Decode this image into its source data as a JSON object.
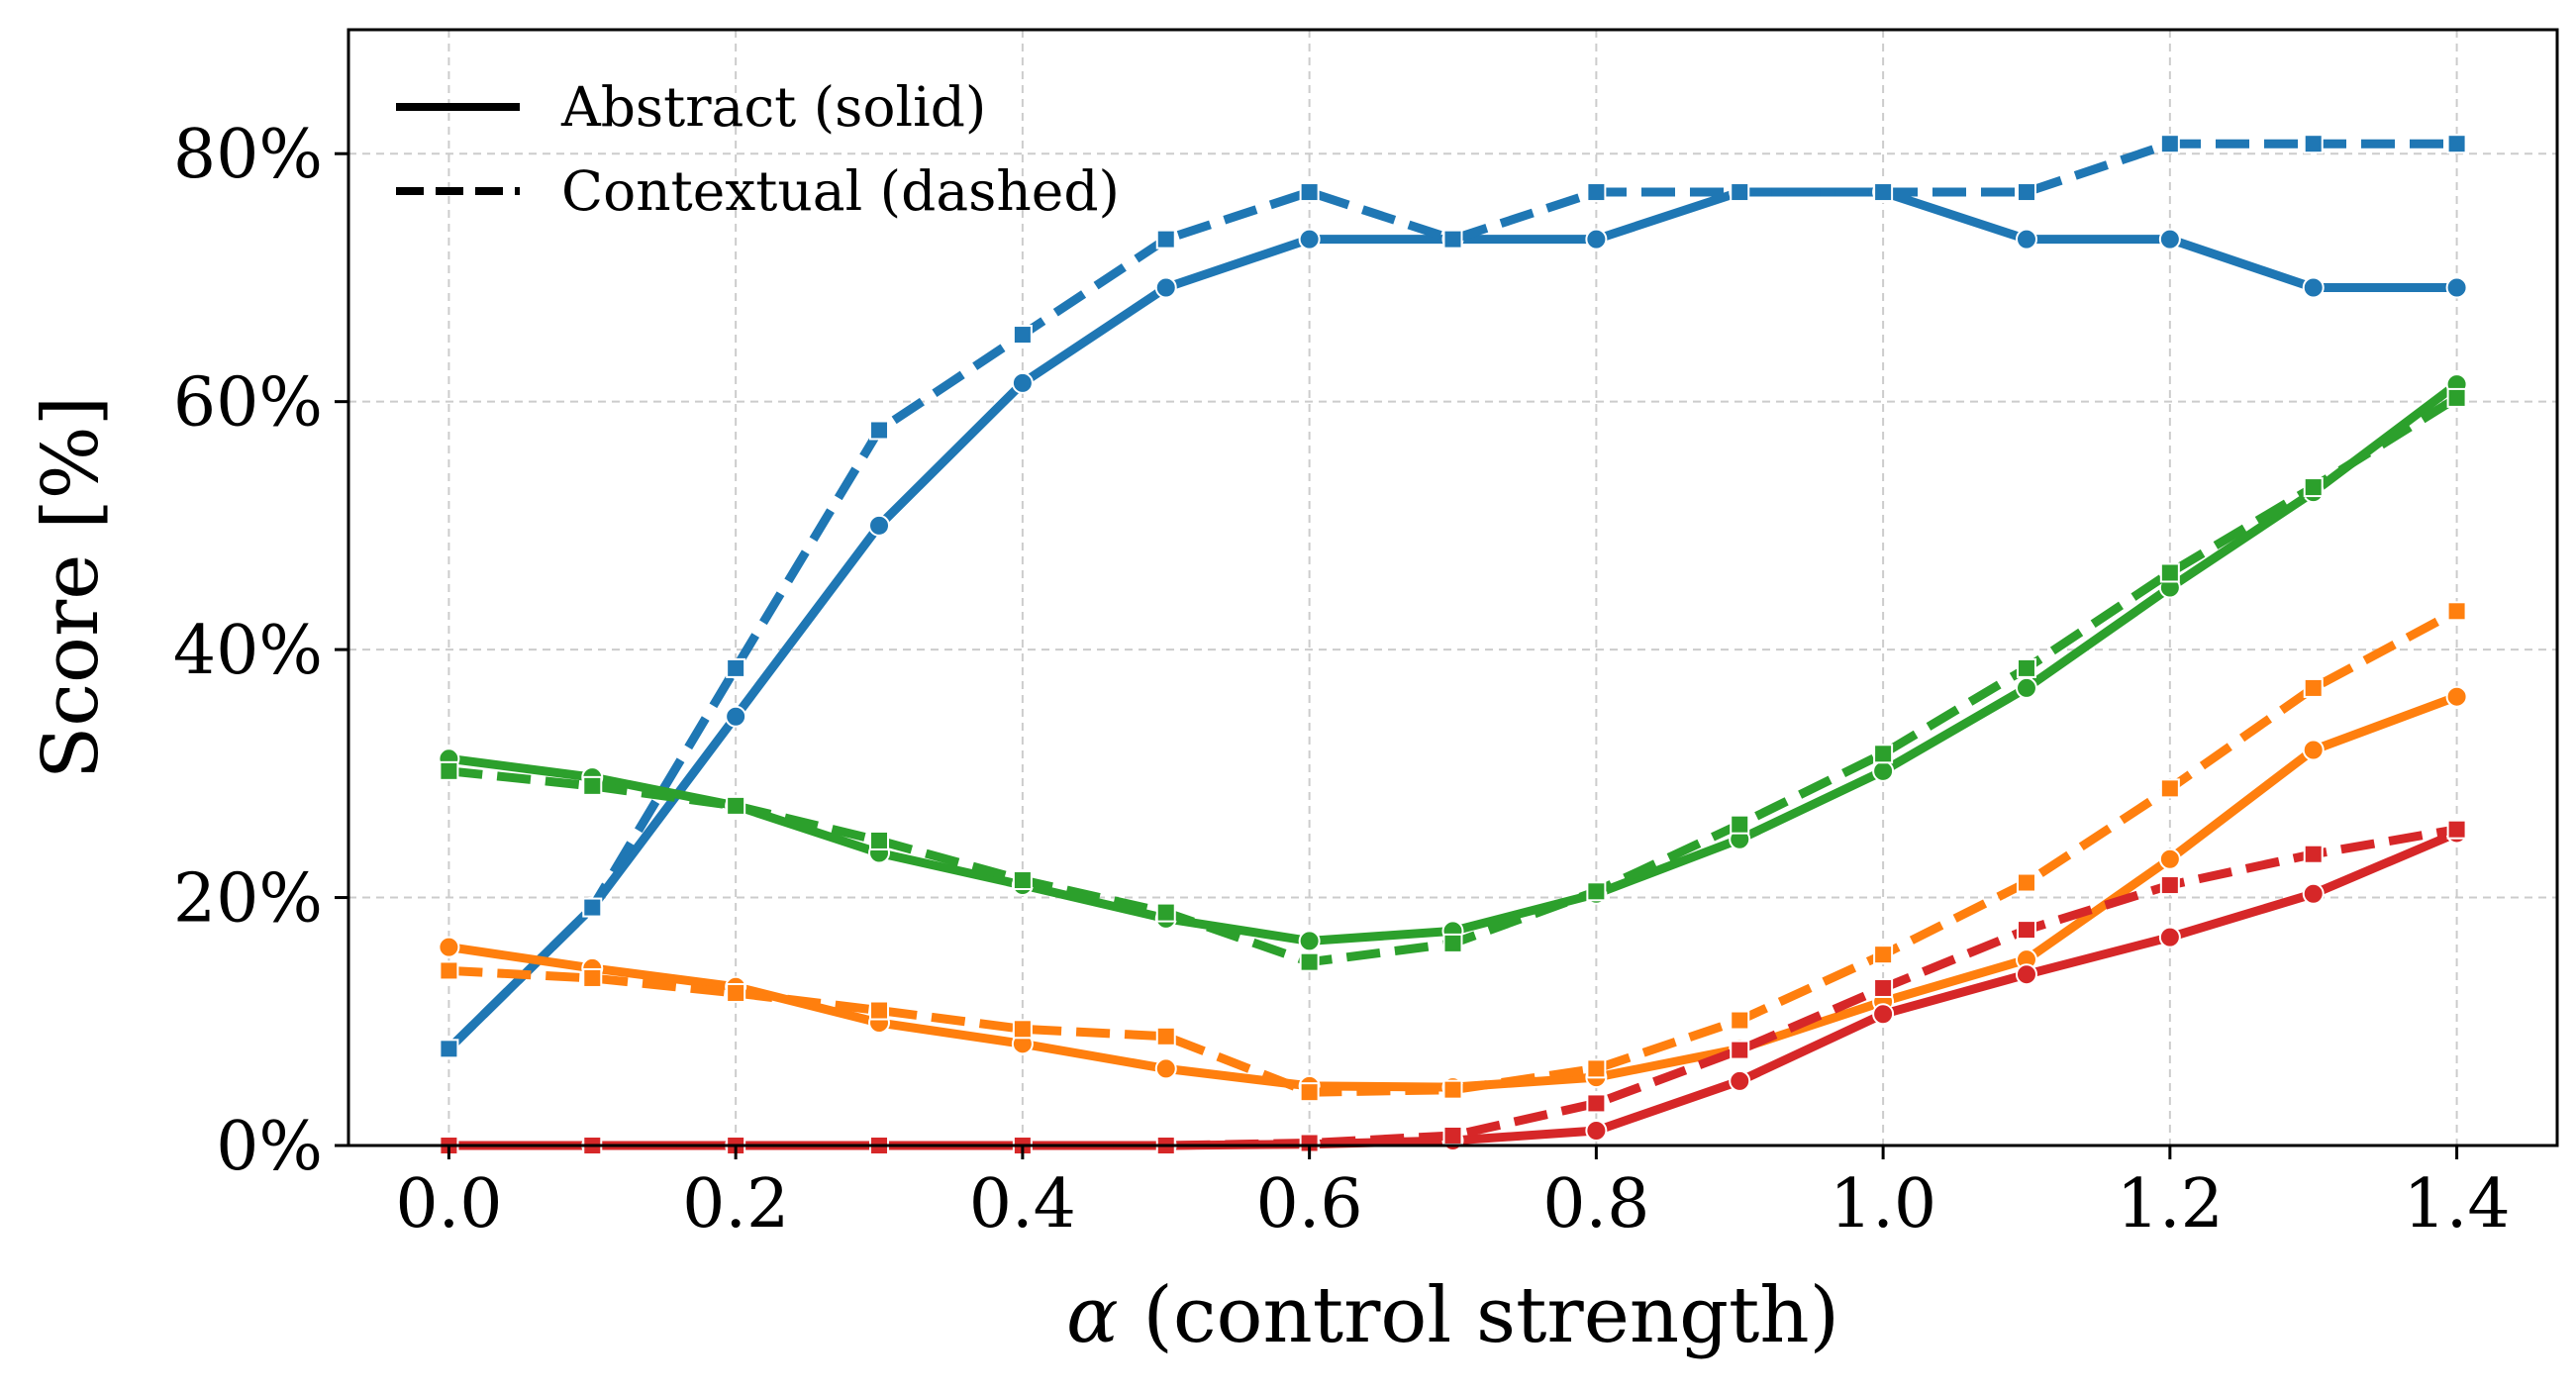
{
  "chart_data": {
    "type": "line",
    "xlabel_symbol": "α",
    "xlabel_rest": " (control strength)",
    "ylabel": "Score [%]",
    "x": [
      0.0,
      0.1,
      0.2,
      0.3,
      0.4,
      0.5,
      0.6,
      0.7,
      0.8,
      0.9,
      1.0,
      1.1,
      1.2,
      1.3,
      1.4
    ],
    "xlim": [
      -0.07,
      1.47
    ],
    "ylim": [
      0,
      90
    ],
    "xticks": [
      0.0,
      0.2,
      0.4,
      0.6,
      0.8,
      1.0,
      1.2,
      1.4
    ],
    "xtick_labels": [
      "0.0",
      "0.2",
      "0.4",
      "0.6",
      "0.8",
      "1.0",
      "1.2",
      "1.4"
    ],
    "yticks": [
      0,
      20,
      40,
      60,
      80
    ],
    "ytick_labels": [
      "0%",
      "20%",
      "40%",
      "60%",
      "80%"
    ],
    "grid": true,
    "legend": {
      "position": "top-left",
      "entries": [
        {
          "label": "Abstract (solid)",
          "style": "solid"
        },
        {
          "label": "Contextual (dashed)",
          "style": "dashed"
        }
      ]
    },
    "series": [
      {
        "name": "blue-abstract",
        "color": "#1f77b4",
        "style": "solid",
        "marker": "circle",
        "values": [
          7.8,
          19.2,
          34.6,
          50.0,
          61.5,
          69.2,
          73.1,
          73.1,
          73.1,
          76.9,
          76.9,
          73.1,
          73.1,
          69.2,
          69.2
        ]
      },
      {
        "name": "blue-contextual",
        "color": "#1f77b4",
        "style": "dashed",
        "marker": "square",
        "values": [
          7.8,
          19.2,
          38.5,
          57.7,
          65.4,
          73.1,
          76.9,
          73.1,
          76.9,
          76.9,
          76.9,
          76.9,
          80.8,
          80.8,
          80.8
        ]
      },
      {
        "name": "green-abstract",
        "color": "#2ca02c",
        "style": "solid",
        "marker": "circle",
        "values": [
          31.2,
          29.7,
          27.4,
          23.6,
          21.0,
          18.3,
          16.5,
          17.3,
          20.3,
          24.7,
          30.2,
          36.9,
          45.0,
          52.7,
          61.4
        ]
      },
      {
        "name": "green-contextual",
        "color": "#2ca02c",
        "style": "dashed",
        "marker": "square",
        "values": [
          30.2,
          29.0,
          27.4,
          24.6,
          21.4,
          18.8,
          14.8,
          16.3,
          20.5,
          25.9,
          31.6,
          38.5,
          46.2,
          53.1,
          60.3
        ]
      },
      {
        "name": "orange-abstract",
        "color": "#ff7f0e",
        "style": "solid",
        "marker": "circle",
        "values": [
          16.0,
          14.3,
          12.8,
          9.9,
          8.2,
          6.2,
          4.8,
          4.7,
          5.5,
          7.8,
          11.6,
          15.0,
          23.1,
          31.9,
          36.2
        ]
      },
      {
        "name": "orange-contextual",
        "color": "#ff7f0e",
        "style": "dashed",
        "marker": "square",
        "values": [
          14.1,
          13.5,
          12.3,
          10.9,
          9.4,
          8.8,
          4.3,
          4.5,
          6.2,
          10.1,
          15.4,
          21.2,
          28.8,
          36.9,
          43.1
        ]
      },
      {
        "name": "red-abstract",
        "color": "#d62728",
        "style": "solid",
        "marker": "circle",
        "values": [
          0.0,
          0.0,
          0.0,
          0.0,
          0.0,
          0.0,
          0.1,
          0.4,
          1.2,
          5.2,
          10.6,
          13.8,
          16.8,
          20.3,
          25.2
        ]
      },
      {
        "name": "red-contextual",
        "color": "#d62728",
        "style": "dashed",
        "marker": "square",
        "values": [
          0.0,
          0.0,
          0.0,
          0.0,
          0.0,
          0.0,
          0.2,
          0.8,
          3.4,
          7.7,
          12.7,
          17.4,
          21.0,
          23.5,
          25.5
        ]
      }
    ]
  }
}
